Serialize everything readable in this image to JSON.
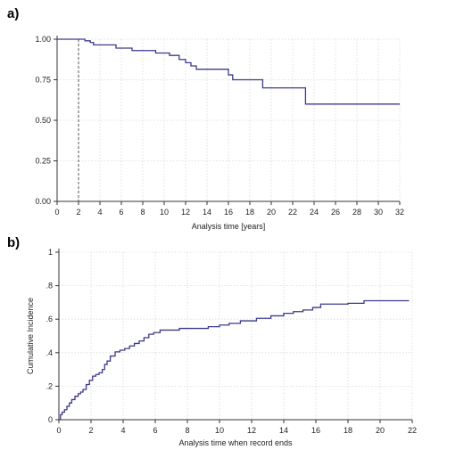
{
  "colors": {
    "line": "#3c3a8c",
    "grid": "#d9d9d9",
    "axis": "#333333",
    "text": "#222222"
  },
  "chart_data": [
    {
      "id": "a",
      "type": "line",
      "step": true,
      "panel_label": "a)",
      "xlabel": "Analysis time [years]",
      "ylabel": "",
      "xlim": [
        0,
        32
      ],
      "ylim": [
        0,
        1
      ],
      "x_ticks": [
        0,
        2,
        4,
        6,
        8,
        10,
        12,
        14,
        16,
        18,
        20,
        22,
        24,
        26,
        28,
        30,
        32
      ],
      "x_tick_labels": [
        "0",
        "2",
        "4",
        "6",
        "8",
        "10",
        "12",
        "14",
        "16",
        "18",
        "20",
        "22",
        "24",
        "26",
        "28",
        "30",
        "32"
      ],
      "y_ticks": [
        0,
        0.25,
        0.5,
        0.75,
        1
      ],
      "y_tick_labels": [
        "0.00",
        "0.25",
        "0.50",
        "0.75",
        "1.00"
      ],
      "grid": true,
      "reference_line_x": 2,
      "series": [
        {
          "x": [
            0,
            2.6,
            3.1,
            3.4,
            5.5,
            7.0,
            9.2,
            10.5,
            11.4,
            12.0,
            12.5,
            13.0,
            16.0,
            16.4,
            19.2,
            23.2,
            32
          ],
          "y": [
            1.0,
            0.99,
            0.98,
            0.965,
            0.945,
            0.93,
            0.915,
            0.9,
            0.875,
            0.855,
            0.835,
            0.815,
            0.78,
            0.75,
            0.7,
            0.6,
            0.6
          ]
        }
      ]
    },
    {
      "id": "b",
      "type": "line",
      "step": true,
      "panel_label": "b)",
      "xlabel": "Analysis time when record ends",
      "ylabel": "Cumulative Incidence",
      "xlim": [
        0,
        22
      ],
      "ylim": [
        0,
        1
      ],
      "x_ticks": [
        0,
        2,
        4,
        6,
        8,
        10,
        12,
        14,
        16,
        18,
        20,
        22
      ],
      "x_tick_labels": [
        "0",
        "2",
        "4",
        "6",
        "8",
        "10",
        "12",
        "14",
        "16",
        "18",
        "20",
        "22"
      ],
      "y_ticks": [
        0,
        0.2,
        0.4,
        0.6,
        0.8,
        1
      ],
      "y_tick_labels": [
        "0",
        ".2",
        ".4",
        ".6",
        ".8",
        "1"
      ],
      "grid": true,
      "series": [
        {
          "x": [
            0,
            0.1,
            0.2,
            0.35,
            0.5,
            0.65,
            0.8,
            1.0,
            1.2,
            1.35,
            1.5,
            1.7,
            1.9,
            2.1,
            2.3,
            2.5,
            2.7,
            2.85,
            3.0,
            3.2,
            3.5,
            3.8,
            4.1,
            4.4,
            4.7,
            5.0,
            5.3,
            5.6,
            5.9,
            6.3,
            7.5,
            9.3,
            10.0,
            10.6,
            11.3,
            12.3,
            13.2,
            14.0,
            14.6,
            15.2,
            15.8,
            16.3,
            18.0,
            19.0,
            21.8
          ],
          "y": [
            0.0,
            0.03,
            0.045,
            0.06,
            0.08,
            0.1,
            0.12,
            0.14,
            0.155,
            0.165,
            0.18,
            0.21,
            0.235,
            0.26,
            0.27,
            0.28,
            0.3,
            0.33,
            0.35,
            0.38,
            0.405,
            0.415,
            0.425,
            0.44,
            0.455,
            0.47,
            0.49,
            0.51,
            0.52,
            0.535,
            0.545,
            0.555,
            0.565,
            0.575,
            0.59,
            0.605,
            0.62,
            0.635,
            0.645,
            0.655,
            0.67,
            0.69,
            0.695,
            0.71,
            0.71
          ]
        }
      ]
    }
  ]
}
